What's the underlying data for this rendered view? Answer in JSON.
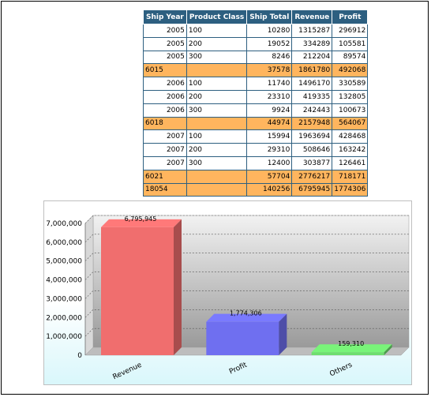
{
  "table": {
    "headers": [
      "Ship Year",
      "Product Class",
      "Ship Total",
      "Revenue",
      "Profit"
    ],
    "rows": [
      {
        "type": "data",
        "cells": [
          "2005",
          "100",
          "10280",
          "1315287",
          "296912"
        ]
      },
      {
        "type": "data",
        "cells": [
          "2005",
          "200",
          "19052",
          "334289",
          "105581"
        ]
      },
      {
        "type": "data",
        "cells": [
          "2005",
          "300",
          "8246",
          "212204",
          "89574"
        ]
      },
      {
        "type": "sub",
        "cells": [
          "6015",
          "",
          "37578",
          "1861780",
          "492068"
        ]
      },
      {
        "type": "data",
        "cells": [
          "2006",
          "100",
          "11740",
          "1496170",
          "330589"
        ]
      },
      {
        "type": "data",
        "cells": [
          "2006",
          "200",
          "23310",
          "419335",
          "132805"
        ]
      },
      {
        "type": "data",
        "cells": [
          "2006",
          "300",
          "9924",
          "242443",
          "100673"
        ]
      },
      {
        "type": "sub",
        "cells": [
          "6018",
          "",
          "44974",
          "2157948",
          "564067"
        ]
      },
      {
        "type": "data",
        "cells": [
          "2007",
          "100",
          "15994",
          "1963694",
          "428468"
        ]
      },
      {
        "type": "data",
        "cells": [
          "2007",
          "200",
          "29310",
          "508646",
          "163242"
        ]
      },
      {
        "type": "data",
        "cells": [
          "2007",
          "300",
          "12400",
          "303877",
          "126461"
        ]
      },
      {
        "type": "sub",
        "cells": [
          "6021",
          "",
          "57704",
          "2776217",
          "718171"
        ]
      },
      {
        "type": "sub",
        "cells": [
          "18054",
          "",
          "140256",
          "6795945",
          "1774306"
        ]
      }
    ]
  },
  "chart_data": {
    "type": "bar",
    "categories": [
      "Revenue",
      "Profit",
      "Others"
    ],
    "values": [
      6795945,
      1774306,
      159310
    ],
    "data_labels": [
      "6,795,945",
      "1,774,306",
      "159,310"
    ],
    "ylim": [
      0,
      7000000
    ],
    "yticks": [
      0,
      1000000,
      2000000,
      3000000,
      4000000,
      5000000,
      6000000,
      7000000
    ],
    "ytick_labels": [
      "0",
      "1,000,000",
      "2,000,000",
      "3,000,000",
      "4,000,000",
      "5,000,000",
      "6,000,000",
      "7,000,000"
    ],
    "colors": [
      "#f06e6e",
      "#6f6ff0",
      "#6ede6e"
    ],
    "grid": true
  }
}
